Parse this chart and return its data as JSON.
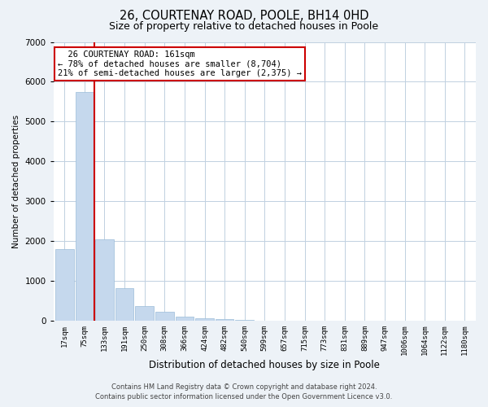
{
  "title": "26, COURTENAY ROAD, POOLE, BH14 0HD",
  "subtitle": "Size of property relative to detached houses in Poole",
  "xlabel": "Distribution of detached houses by size in Poole",
  "ylabel": "Number of detached properties",
  "bar_labels": [
    "17sqm",
    "75sqm",
    "133sqm",
    "191sqm",
    "250sqm",
    "308sqm",
    "366sqm",
    "424sqm",
    "482sqm",
    "540sqm",
    "599sqm",
    "657sqm",
    "715sqm",
    "773sqm",
    "831sqm",
    "889sqm",
    "947sqm",
    "1006sqm",
    "1064sqm",
    "1122sqm",
    "1180sqm"
  ],
  "bar_values": [
    1800,
    5750,
    2050,
    820,
    370,
    230,
    100,
    55,
    30,
    10,
    5,
    0,
    0,
    0,
    0,
    0,
    0,
    0,
    0,
    0,
    0
  ],
  "bar_color": "#c5d8ed",
  "bar_edge_color": "#9bbcd9",
  "ylim": [
    0,
    7000
  ],
  "red_line_x": 1.5,
  "annotation_title": "26 COURTENAY ROAD: 161sqm",
  "annotation_line1": "← 78% of detached houses are smaller (8,704)",
  "annotation_line2": "21% of semi-detached houses are larger (2,375) →",
  "annotation_box_facecolor": "#ffffff",
  "annotation_box_edgecolor": "#cc0000",
  "footer_line1": "Contains HM Land Registry data © Crown copyright and database right 2024.",
  "footer_line2": "Contains public sector information licensed under the Open Government Licence v3.0.",
  "background_color": "#edf2f7",
  "plot_bg_color": "#ffffff",
  "grid_color": "#c0d0e0",
  "title_fontsize": 10.5,
  "subtitle_fontsize": 9,
  "tick_fontsize": 6.5,
  "xlabel_fontsize": 8.5,
  "ylabel_fontsize": 7.5,
  "annotation_fontsize": 7.5,
  "footer_fontsize": 6
}
